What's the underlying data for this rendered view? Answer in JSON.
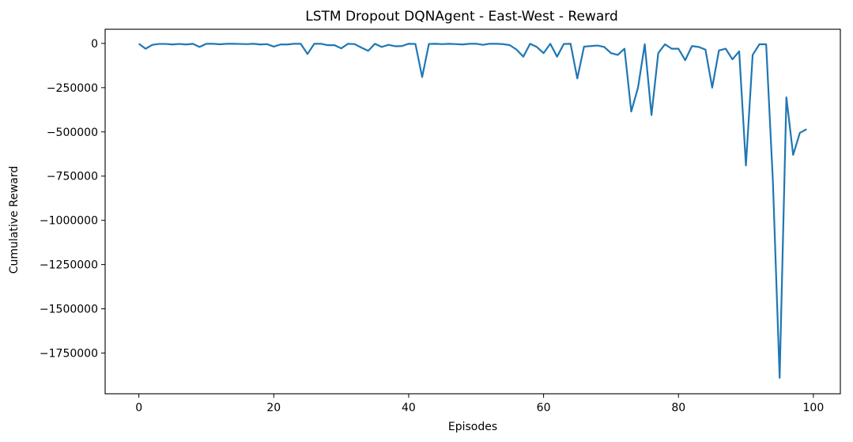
{
  "chart_data": {
    "type": "line",
    "title": "LSTM Dropout DQNAgent - East-West - Reward",
    "xlabel": "Episodes",
    "ylabel": "Cumulative Reward",
    "xlim": [
      -5,
      104
    ],
    "ylim": [
      -1980000,
      80000
    ],
    "xticks": [
      0,
      20,
      40,
      60,
      80,
      100
    ],
    "xtick_labels": [
      "0",
      "20",
      "40",
      "60",
      "80",
      "100"
    ],
    "yticks": [
      0,
      -250000,
      -500000,
      -750000,
      -1000000,
      -1250000,
      -1500000,
      -1750000
    ],
    "ytick_labels": [
      "0",
      "−250000",
      "−500000",
      "−750000",
      "−1000000",
      "−1250000",
      "−1500000",
      "−1750000"
    ],
    "grid": false,
    "legend": "none",
    "line_color": "#1f77b4",
    "x": [
      0,
      1,
      2,
      3,
      4,
      5,
      6,
      7,
      8,
      9,
      10,
      11,
      12,
      13,
      14,
      15,
      16,
      17,
      18,
      19,
      20,
      21,
      22,
      23,
      24,
      25,
      26,
      27,
      28,
      29,
      30,
      31,
      32,
      33,
      34,
      35,
      36,
      37,
      38,
      39,
      40,
      41,
      42,
      43,
      44,
      45,
      46,
      47,
      48,
      49,
      50,
      51,
      52,
      53,
      54,
      55,
      56,
      57,
      58,
      59,
      60,
      61,
      62,
      63,
      64,
      65,
      66,
      67,
      68,
      69,
      70,
      71,
      72,
      73,
      74,
      75,
      76,
      77,
      78,
      79,
      80,
      81,
      82,
      83,
      84,
      85,
      86,
      87,
      88,
      89,
      90,
      91,
      92,
      93,
      94,
      95,
      96,
      97,
      98,
      99
    ],
    "series": [
      {
        "values": [
          -2000,
          -30000,
          -8000,
          -3000,
          -3000,
          -6000,
          -3000,
          -6000,
          -2000,
          -20000,
          -2000,
          -2000,
          -5000,
          -2000,
          -2000,
          -3000,
          -4000,
          -2000,
          -6000,
          -4000,
          -18000,
          -6000,
          -6000,
          -2000,
          -2000,
          -60000,
          -2000,
          -2000,
          -10000,
          -10000,
          -28000,
          -2000,
          -4000,
          -24000,
          -42000,
          -2000,
          -20000,
          -8000,
          -16000,
          -15000,
          -2000,
          -3000,
          -190000,
          -3000,
          -2000,
          -4000,
          -2000,
          -4000,
          -6000,
          -2000,
          -2000,
          -8000,
          -2000,
          -2000,
          -4000,
          -10000,
          -35000,
          -75000,
          -2000,
          -20000,
          -55000,
          -2000,
          -75000,
          -3000,
          -2000,
          -198000,
          -18000,
          -15000,
          -12000,
          -20000,
          -55000,
          -65000,
          -30000,
          -385000,
          -250000,
          -5000,
          -405000,
          -55000,
          -5000,
          -30000,
          -30000,
          -95000,
          -15000,
          -20000,
          -35000,
          -250000,
          -40000,
          -30000,
          -90000,
          -45000,
          -690000,
          -65000,
          -5000,
          -5000,
          -780000,
          -1890000,
          -305000,
          -630000,
          -505000,
          -485000
        ]
      }
    ]
  }
}
